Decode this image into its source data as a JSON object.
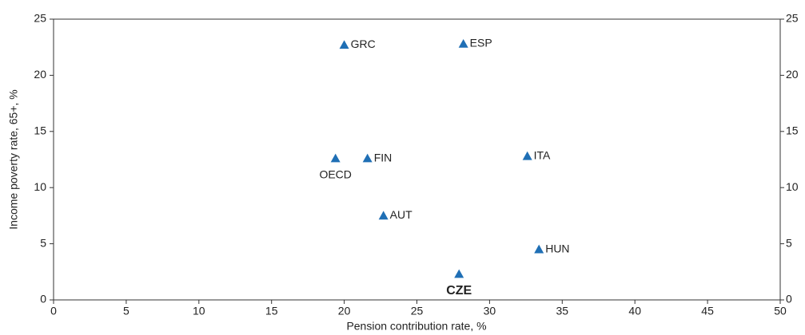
{
  "chart_data": {
    "type": "scatter",
    "x_label": "Pension contribution rate, %",
    "y_label": "Income poverty rate, 65+, %",
    "color": "#1f6fb5",
    "labels": [
      "GRC",
      "ESP",
      "OECD",
      "FIN",
      "ITA",
      "AUT",
      "HUN",
      "CZE"
    ],
    "x": [
      20.0,
      28.2,
      19.4,
      21.6,
      32.6,
      22.7,
      33.4,
      27.9
    ],
    "values": [
      22.7,
      22.8,
      12.6,
      12.6,
      12.8,
      7.5,
      4.5,
      2.3
    ],
    "xlim": [
      0,
      50
    ],
    "xticks": [
      0,
      5,
      10,
      15,
      20,
      25,
      30,
      35,
      40,
      45,
      50
    ],
    "ylim": [
      0,
      25
    ],
    "yticks": [
      0,
      5,
      10,
      15,
      20,
      25
    ],
    "y2lim": [
      0,
      25
    ],
    "y2ticks": [
      0,
      5,
      10,
      15,
      20,
      25
    ]
  }
}
